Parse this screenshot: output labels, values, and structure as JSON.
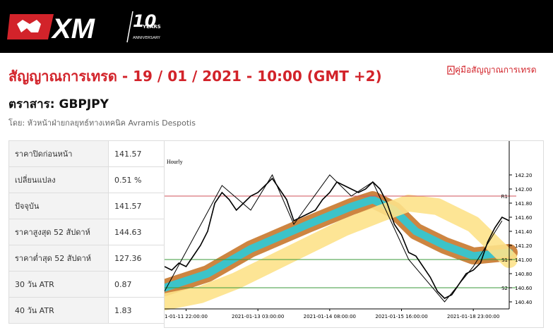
{
  "header": {
    "logo": "XM",
    "anniversary_number": "10",
    "anniversary_years": "YEARS",
    "anniversary_word": "ANNIVERSARY"
  },
  "title": "สัญญาณการเทรด - 19 / 01 / 2021 - 10:00 (GMT +2)",
  "guide_link": "คู่มือสัญญาณการเทรด",
  "instrument": "ตราสาร: GBPJPY",
  "author": "โดย: หัวหน้าฝ่ายกลยุทธ์ทางเทคนิค Avramis Despotis",
  "table": {
    "rows": [
      [
        "ราคาปิดก่อนหน้า",
        "141.57"
      ],
      [
        "เปลี่ยนแปลง",
        "0.51 %"
      ],
      [
        "ปัจจุบัน",
        "141.57"
      ],
      [
        "ราคาสูงสุด 52 สัปดาห์",
        "144.63"
      ],
      [
        "ราคาต่ำสุด 52 สัปดาห์",
        "127.36"
      ],
      [
        "30 วัน ATR",
        "0.87"
      ],
      [
        "40 วัน ATR",
        "1.83"
      ]
    ]
  },
  "chart_data": {
    "type": "line",
    "title": "Hourly",
    "xlim": [
      0,
      48
    ],
    "xticks": [
      {
        "value": 3,
        "label": "1-01-11 22:00:00"
      },
      {
        "value": 13,
        "label": "2021-01-13 03:00:00"
      },
      {
        "value": 23,
        "label": "2021-01-14 08:00:00"
      },
      {
        "value": 33,
        "label": "2021-01-15 16:00:00"
      },
      {
        "value": 43,
        "label": "2021-01-18 23:00:00"
      }
    ],
    "ylim": [
      140.3,
      142.6
    ],
    "yticks": [
      {
        "value": 142.2,
        "label": "142.20"
      },
      {
        "value": 142.0,
        "label": "142.00"
      },
      {
        "value": 141.8,
        "label": "141.80"
      },
      {
        "value": 141.6,
        "label": "141.60"
      },
      {
        "value": 141.4,
        "label": "141.40"
      },
      {
        "value": 141.2,
        "label": "141.20"
      },
      {
        "value": 141.0,
        "label": "141.00"
      },
      {
        "value": 140.8,
        "label": "140.80"
      },
      {
        "value": 140.6,
        "label": "140.60"
      },
      {
        "value": 140.4,
        "label": "140.40"
      }
    ],
    "bands": [
      {
        "color": "#c8782c",
        "inner_color": "#3cc3c9",
        "x": [
          0,
          6,
          12,
          20,
          26,
          29,
          32,
          35,
          39,
          43,
          48
        ],
        "values": [
          140.6,
          140.8,
          141.15,
          141.5,
          141.75,
          141.85,
          141.7,
          141.4,
          141.2,
          141.05,
          141.1
        ]
      },
      {
        "color": "#fde28a",
        "x": [
          0,
          5,
          10,
          15,
          20,
          25,
          30,
          34,
          38,
          43,
          48
        ],
        "values": [
          140.4,
          140.5,
          140.7,
          140.95,
          141.2,
          141.45,
          141.65,
          141.8,
          141.75,
          141.5,
          141.0
        ]
      }
    ],
    "levels": [
      {
        "name": "R1",
        "value": 141.9,
        "color": "#d0505a"
      },
      {
        "name": "S1",
        "value": 141.0,
        "color": "#3a9a3a"
      },
      {
        "name": "S2",
        "value": 140.6,
        "color": "#3a9a3a"
      }
    ],
    "series": [
      {
        "color": "#000000",
        "values": [
          140.9,
          140.85,
          140.95,
          140.9,
          141.05,
          141.2,
          141.4,
          141.8,
          141.95,
          141.85,
          141.7,
          141.8,
          141.9,
          141.95,
          142.05,
          142.15,
          142.0,
          141.85,
          141.55,
          141.6,
          141.65,
          141.7,
          141.85,
          141.95,
          142.1,
          142.05,
          142.0,
          141.95,
          142.0,
          142.1,
          142.0,
          141.8,
          141.5,
          141.35,
          141.1,
          141.05,
          140.9,
          140.75,
          140.55,
          140.45,
          140.5,
          140.65,
          140.8,
          140.85,
          140.95,
          141.25,
          141.45,
          141.6,
          141.55
        ]
      }
    ],
    "zigzag": {
      "color": "#000000",
      "x": [
        0,
        8,
        12,
        15,
        18,
        23,
        26,
        29,
        34,
        39,
        43,
        47
      ],
      "values": [
        140.55,
        142.05,
        141.7,
        142.2,
        141.5,
        142.2,
        141.9,
        142.1,
        141.0,
        140.4,
        140.9,
        141.55
      ]
    }
  }
}
